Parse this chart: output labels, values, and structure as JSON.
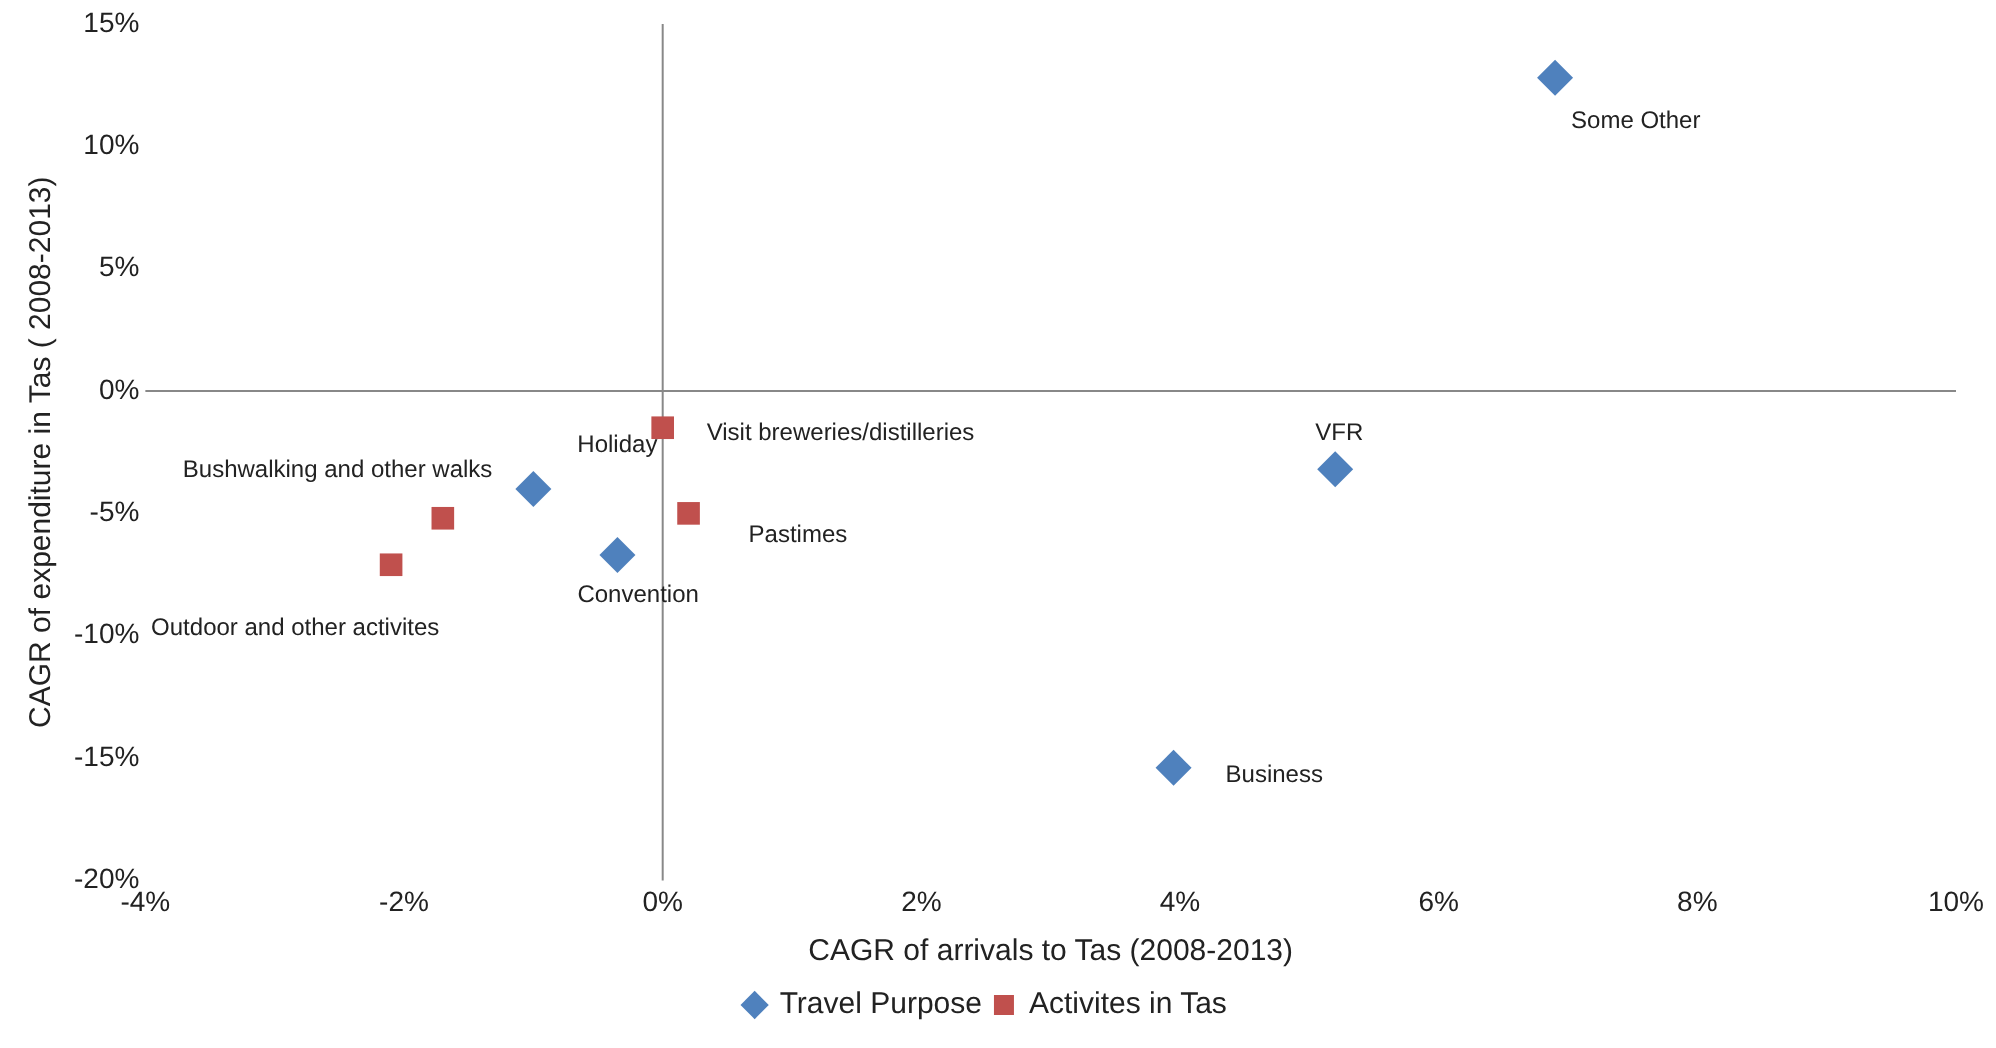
{
  "chart_data": {
    "type": "scatter",
    "xlabel": "CAGR of arrivals to Tas (2008-2013)",
    "ylabel": "CAGR of expenditure in Tas ( 2008-2013)",
    "series": [
      {
        "name": "Travel Purpose",
        "color": "#4f81bd",
        "marker": "diamond",
        "x": [
          6.9,
          5.2,
          3.95,
          -1.0,
          -0.35
        ],
        "values": [
          12.8,
          -3.2,
          -15.4,
          -4.0,
          -6.7
        ]
      },
      {
        "name": "Activites in Tas",
        "color": "#c0504d",
        "marker": "square",
        "x": [
          0.0,
          0.2,
          -1.7,
          -2.1
        ],
        "values": [
          -1.5,
          -5.0,
          -5.2,
          -7.1
        ]
      }
    ],
    "annotations": [
      {
        "text": "Some Other",
        "x": 6.9,
        "y": 12.8
      },
      {
        "text": "VFR",
        "x": 5.2,
        "y": -3.2
      },
      {
        "text": "Business",
        "x": 3.95,
        "y": -15.4
      },
      {
        "text": "Holiday",
        "x": -1.0,
        "y": -4.0
      },
      {
        "text": "Convention",
        "x": -0.35,
        "y": -6.7
      },
      {
        "text": "Visit breweries/distilleries",
        "x": 0.0,
        "y": -1.5
      },
      {
        "text": "Pastimes",
        "x": 0.2,
        "y": -5.0
      },
      {
        "text": "Bushwalking and other walks",
        "x": -1.7,
        "y": -5.2
      },
      {
        "text": "Outdoor and other activites",
        "x": -2.1,
        "y": -7.1
      }
    ],
    "xlim": [
      -4,
      10
    ],
    "xticks": [
      {
        "value": -4,
        "label": "-4%"
      },
      {
        "value": -2,
        "label": "-2%"
      },
      {
        "value": 0,
        "label": "0%"
      },
      {
        "value": 2,
        "label": "2%"
      },
      {
        "value": 4,
        "label": "4%"
      },
      {
        "value": 6,
        "label": "6%"
      },
      {
        "value": 8,
        "label": "8%"
      },
      {
        "value": 10,
        "label": "10%"
      }
    ],
    "ylim": [
      -20,
      15
    ],
    "yticks": [
      {
        "value": -20,
        "label": "-20%"
      },
      {
        "value": -15,
        "label": "-15%"
      },
      {
        "value": -10,
        "label": "-10%"
      },
      {
        "value": -5,
        "label": "-5%"
      },
      {
        "value": 0,
        "label": "0%"
      },
      {
        "value": 5,
        "label": "5%"
      },
      {
        "value": 10,
        "label": "10%"
      },
      {
        "value": 15,
        "label": "15%"
      }
    ],
    "legend": "bottom"
  }
}
